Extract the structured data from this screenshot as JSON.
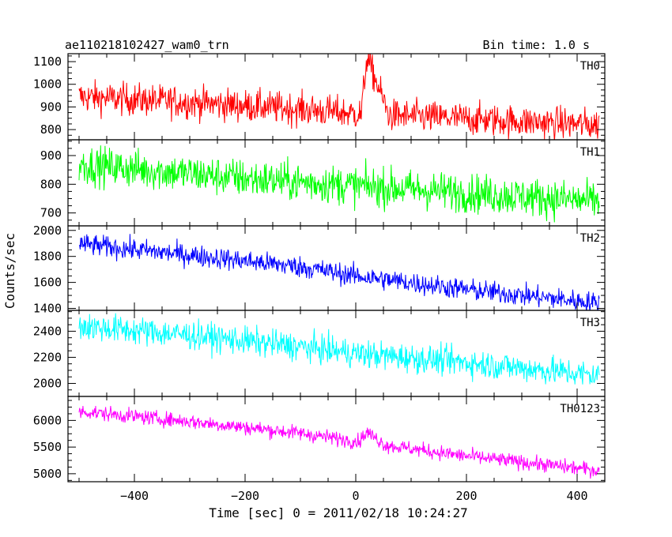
{
  "header": {
    "title": "ae110218102427_wam0_trn",
    "bin_time": "Bin time: 1.0 s"
  },
  "axes": {
    "xlabel": "Time [sec] 0 = 2011/02/18 10:24:27",
    "ylabel": "Counts/sec",
    "xlim": [
      -520,
      450
    ],
    "xticks": [
      -400,
      -200,
      0,
      200,
      400
    ]
  },
  "chart_data": [
    {
      "type": "line",
      "label": "TH0",
      "color": "#ff0000",
      "ylim": [
        755,
        1135
      ],
      "yticks": [
        800,
        900,
        1000,
        1100
      ],
      "x_range": [
        -500,
        440
      ],
      "trend": [
        [
          -500,
          945
        ],
        [
          -300,
          920
        ],
        [
          -100,
          890
        ],
        [
          0,
          870
        ],
        [
          440,
          820
        ]
      ],
      "burst": {
        "t0": 10,
        "t_peak": 20,
        "t1": 60,
        "peak": 1120
      },
      "noise": 36
    },
    {
      "type": "line",
      "label": "TH1",
      "color": "#00ff00",
      "ylim": [
        655,
        955
      ],
      "yticks": [
        700,
        800,
        900
      ],
      "x_range": [
        -500,
        440
      ],
      "trend": [
        [
          -500,
          870
        ],
        [
          -200,
          820
        ],
        [
          0,
          795
        ],
        [
          200,
          770
        ],
        [
          440,
          740
        ]
      ],
      "noise": 34
    },
    {
      "type": "line",
      "label": "TH2",
      "color": "#0000ff",
      "ylim": [
        1385,
        2035
      ],
      "yticks": [
        1400,
        1600,
        1800,
        2000
      ],
      "x_range": [
        -500,
        440
      ],
      "trend": [
        [
          -500,
          1895
        ],
        [
          -300,
          1810
        ],
        [
          -100,
          1720
        ],
        [
          0,
          1650
        ],
        [
          200,
          1545
        ],
        [
          440,
          1440
        ]
      ],
      "noise": 42
    },
    {
      "type": "line",
      "label": "TH3",
      "color": "#00ffff",
      "ylim": [
        1900,
        2560
      ],
      "yticks": [
        2000,
        2200,
        2400
      ],
      "x_range": [
        -500,
        440
      ],
      "trend": [
        [
          -500,
          2440
        ],
        [
          -300,
          2370
        ],
        [
          -100,
          2280
        ],
        [
          0,
          2230
        ],
        [
          200,
          2160
        ],
        [
          440,
          2060
        ]
      ],
      "noise": 55
    },
    {
      "type": "line",
      "label": "TH0123",
      "color": "#ff00ff",
      "ylim": [
        4850,
        6450
      ],
      "yticks": [
        5000,
        5500,
        6000
      ],
      "x_range": [
        -500,
        440
      ],
      "trend": [
        [
          -500,
          6170
        ],
        [
          -300,
          5980
        ],
        [
          -100,
          5760
        ],
        [
          0,
          5610
        ],
        [
          200,
          5330
        ],
        [
          440,
          5060
        ]
      ],
      "burst": {
        "t0": 5,
        "t_peak": 20,
        "t1": 55,
        "peak": 5780
      },
      "noise": 70
    }
  ]
}
